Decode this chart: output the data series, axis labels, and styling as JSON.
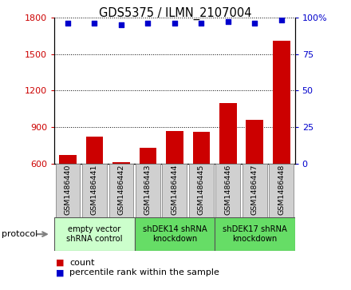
{
  "title": "GDS5375 / ILMN_2107004",
  "samples": [
    "GSM1486440",
    "GSM1486441",
    "GSM1486442",
    "GSM1486443",
    "GSM1486444",
    "GSM1486445",
    "GSM1486446",
    "GSM1486447",
    "GSM1486448"
  ],
  "counts": [
    670,
    820,
    615,
    730,
    870,
    860,
    1100,
    960,
    1610
  ],
  "percentile_ranks": [
    96,
    96,
    95,
    96,
    96,
    96,
    97,
    96,
    98
  ],
  "ylim_left": [
    600,
    1800
  ],
  "ylim_right": [
    0,
    100
  ],
  "yticks_left": [
    600,
    900,
    1200,
    1500,
    1800
  ],
  "yticks_right": [
    0,
    25,
    50,
    75,
    100
  ],
  "bar_color": "#cc0000",
  "dot_color": "#0000cc",
  "groups": [
    {
      "label": "empty vector\nshRNA control",
      "start": 0,
      "end": 3,
      "color": "#ccffcc"
    },
    {
      "label": "shDEK14 shRNA\nknockdown",
      "start": 3,
      "end": 6,
      "color": "#66dd66"
    },
    {
      "label": "shDEK17 shRNA\nknockdown",
      "start": 6,
      "end": 9,
      "color": "#66dd66"
    }
  ],
  "legend_count_label": "count",
  "legend_pct_label": "percentile rank within the sample",
  "protocol_label": "protocol",
  "sample_box_color": "#d0d0d0",
  "sample_box_edge": "#888888"
}
